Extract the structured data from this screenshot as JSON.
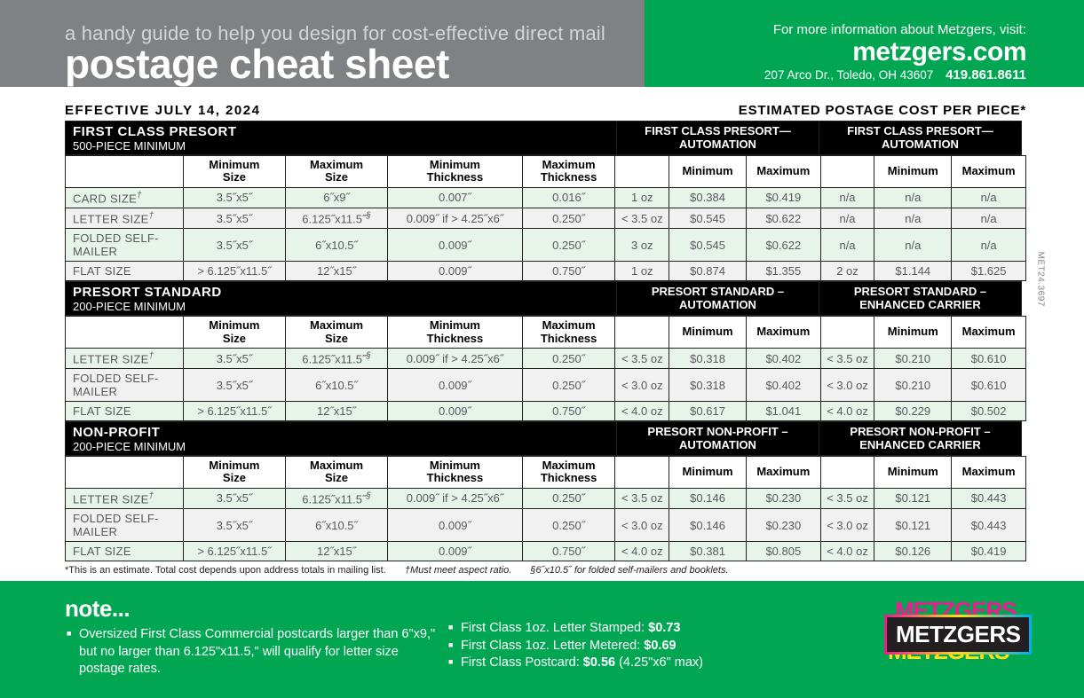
{
  "header": {
    "subtitle": "a handy guide to help you design for cost-effective direct mail",
    "title": "postage cheat sheet",
    "info_line": "For more information about Metzgers, visit:",
    "website": "metzgers.com",
    "address": "207 Arco Dr., Toledo, OH 43607",
    "phone": "419.861.8611"
  },
  "effective_date": "EFFECTIVE JULY 14, 2024",
  "estimate_label": "ESTIMATED POSTAGE COST PER PIECE*",
  "col_headers": {
    "min_size": "Minimum Size",
    "max_size": "Maximum Size",
    "min_thick": "Minimum Thickness",
    "max_thick": "Maximum Thickness",
    "min": "Minimum",
    "max": "Maximum"
  },
  "sections": [
    {
      "title": "FIRST CLASS PRESORT",
      "sub": "500-PIECE MINIMUM",
      "right1": "FIRST CLASS PRESORT—AUTOMATION",
      "right2": "FIRST CLASS PRESORT—AUTOMATION",
      "rows": [
        {
          "name": "CARD SIZE",
          "sup": "†",
          "c": [
            "3.5˝x5˝",
            "6˝x9˝",
            "0.007˝",
            "0.016˝",
            "1 oz",
            "$0.384",
            "$0.419",
            "n/a",
            "n/a",
            "n/a"
          ]
        },
        {
          "name": "LETTER SIZE",
          "sup": "†",
          "c": [
            "3.5˝x5˝",
            "6.125˝x11.5˝§",
            "0.009˝ if > 4.25˝x6˝",
            "0.250˝",
            "< 3.5 oz",
            "$0.545",
            "$0.622",
            "n/a",
            "n/a",
            "n/a"
          ]
        },
        {
          "name": "FOLDED SELF-MAILER",
          "sup": "",
          "c": [
            "3.5˝x5˝",
            "6˝x10.5˝",
            "0.009˝",
            "0.250˝",
            "3 oz",
            "$0.545",
            "$0.622",
            "n/a",
            "n/a",
            "n/a"
          ]
        },
        {
          "name": "FLAT SIZE",
          "sup": "",
          "c": [
            "> 6.125˝x11.5˝",
            "12˝x15˝",
            "0.009˝",
            "0.750˝",
            "1 oz",
            "$0.874",
            "$1.355",
            "2 oz",
            "$1.144",
            "$1.625"
          ]
        }
      ]
    },
    {
      "title": "PRESORT STANDARD",
      "sub": "200-PIECE MINIMUM",
      "right1": "PRESORT STANDARD – AUTOMATION",
      "right2": "PRESORT STANDARD – ENHANCED CARRIER",
      "rows": [
        {
          "name": "LETTER SIZE",
          "sup": "†",
          "c": [
            "3.5˝x5˝",
            "6.125˝x11.5˝§",
            "0.009˝ if > 4.25˝x6˝",
            "0.250˝",
            "< 3.5 oz",
            "$0.318",
            "$0.402",
            "< 3.5 oz",
            "$0.210",
            "$0.610"
          ]
        },
        {
          "name": "FOLDED SELF-MAILER",
          "sup": "",
          "c": [
            "3.5˝x5˝",
            "6˝x10.5˝",
            "0.009˝",
            "0.250˝",
            "< 3.0 oz",
            "$0.318",
            "$0.402",
            "< 3.0 oz",
            "$0.210",
            "$0.610"
          ]
        },
        {
          "name": "FLAT SIZE",
          "sup": "",
          "c": [
            "> 6.125˝x11.5˝",
            "12˝x15˝",
            "0.009˝",
            "0.750˝",
            "< 4.0 oz",
            "$0.617",
            "$1.041",
            "< 4.0 oz",
            "$0.229",
            "$0.502"
          ]
        }
      ]
    },
    {
      "title": "NON-PROFIT",
      "sub": "200-PIECE MINIMUM",
      "right1": "PRESORT NON-PROFIT – AUTOMATION",
      "right2": "PRESORT NON-PROFIT – ENHANCED CARRIER",
      "rows": [
        {
          "name": "LETTER SIZE",
          "sup": "†",
          "c": [
            "3.5˝x5˝",
            "6.125˝x11.5˝§",
            "0.009˝ if > 4.25˝x6˝",
            "0.250˝",
            "< 3.5 oz",
            "$0.146",
            "$0.230",
            "< 3.5 oz",
            "$0.121",
            "$0.443"
          ]
        },
        {
          "name": "FOLDED SELF-MAILER",
          "sup": "",
          "c": [
            "3.5˝x5˝",
            "6˝x10.5˝",
            "0.009˝",
            "0.250˝",
            "< 3.0 oz",
            "$0.146",
            "$0.230",
            "< 3.0 oz",
            "$0.121",
            "$0.443"
          ]
        },
        {
          "name": "FLAT SIZE",
          "sup": "",
          "c": [
            "> 6.125˝x11.5˝",
            "12˝x15˝",
            "0.009˝",
            "0.750˝",
            "< 4.0 oz",
            "$0.381",
            "$0.805",
            "< 4.0 oz",
            "$0.126",
            "$0.419"
          ]
        }
      ]
    }
  ],
  "footnotes": {
    "a": "*This is an estimate. Total cost depends upon address totals in mailing list.",
    "b": "†Must meet aspect ratio.",
    "c": "§6˝x10.5˝ for folded self-mailers and booklets."
  },
  "side_code": "MET24.3697",
  "note": {
    "title": "note...",
    "left": [
      "Oversized First Class Commercial postcards larger than 6\"x9,\" but no larger than 6.125\"x11.5,\" will qualify for letter size postage rates."
    ],
    "mid": [
      {
        "t": "First Class 1oz. Letter Stamped: ",
        "b": "$0.73"
      },
      {
        "t": "First Class 1oz. Letter Metered: ",
        "b": "$0.69"
      },
      {
        "t": "First Class Postcard: ",
        "b": "$0.56",
        "after": " (4.25\"x6\" max)"
      }
    ]
  },
  "logo_text": "METZGERS"
}
